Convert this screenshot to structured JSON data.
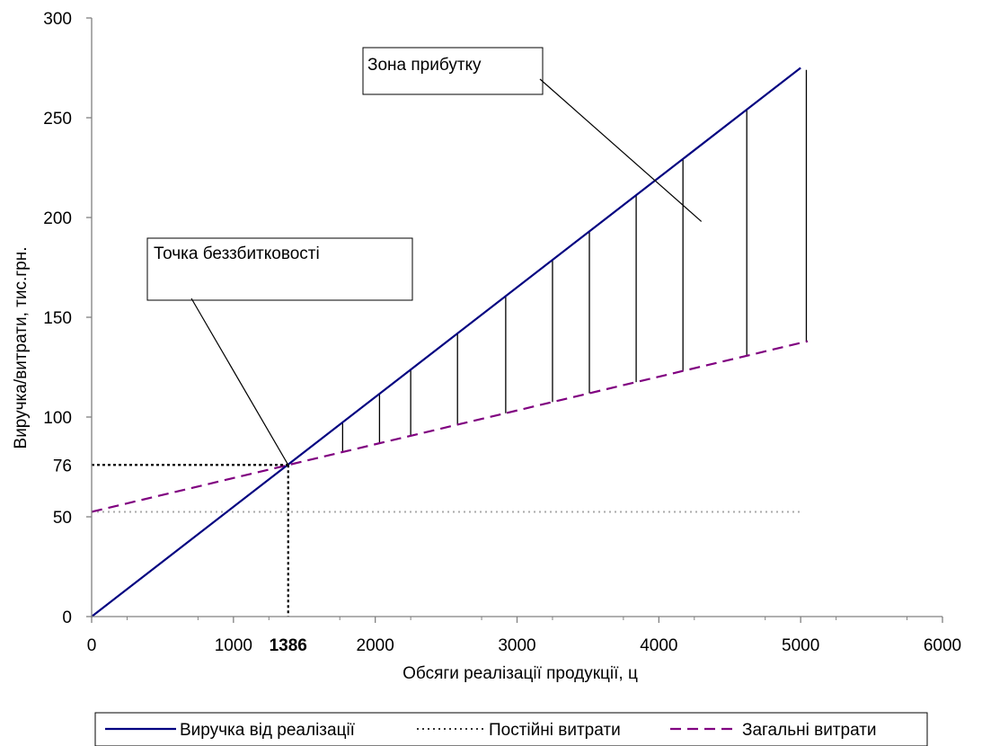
{
  "chart_data": {
    "type": "line",
    "xlabel": "Обсяги реалізації продукції, ц",
    "ylabel": "Виручка/витрати, тис.грн.",
    "xlim": [
      0,
      6000
    ],
    "ylim": [
      0,
      300
    ],
    "x_ticks": [
      "0",
      "1000",
      "2000",
      "3000",
      "4000",
      "5000",
      "6000"
    ],
    "x_tick_values": [
      0,
      1000,
      2000,
      3000,
      4000,
      5000,
      6000
    ],
    "y_ticks": [
      "0",
      "50",
      "100",
      "150",
      "200",
      "250",
      "300"
    ],
    "y_tick_values": [
      0,
      50,
      100,
      150,
      200,
      250,
      300
    ],
    "grid": false,
    "legend_position": "bottom",
    "series": [
      {
        "name": "Виручка від реалізації",
        "style": "solid",
        "color": "#000080",
        "x": [
          0,
          5000
        ],
        "y": [
          0,
          275
        ]
      },
      {
        "name": "Постійні витрати",
        "style": "dotted",
        "color": "#aaaaaa",
        "x": [
          0,
          5000
        ],
        "y": [
          52.5,
          52.5
        ]
      },
      {
        "name": "Загальні витрати",
        "style": "dashed",
        "color": "#800080",
        "x": [
          0,
          5050
        ],
        "y": [
          52.5,
          138
        ]
      }
    ],
    "breakeven": {
      "x": 1386,
      "y": 76,
      "x_label": "1386",
      "y_label": "76"
    },
    "profit_zone_x": [
      1770,
      2030,
      2250,
      2580,
      2920,
      3250,
      3510,
      3840,
      4170,
      4620,
      5040
    ],
    "annotations": [
      {
        "text": "Зона прибутку",
        "target": [
          4300,
          198
        ]
      },
      {
        "text": "Точка беззбитковості",
        "target": [
          1386,
          76
        ]
      }
    ]
  }
}
